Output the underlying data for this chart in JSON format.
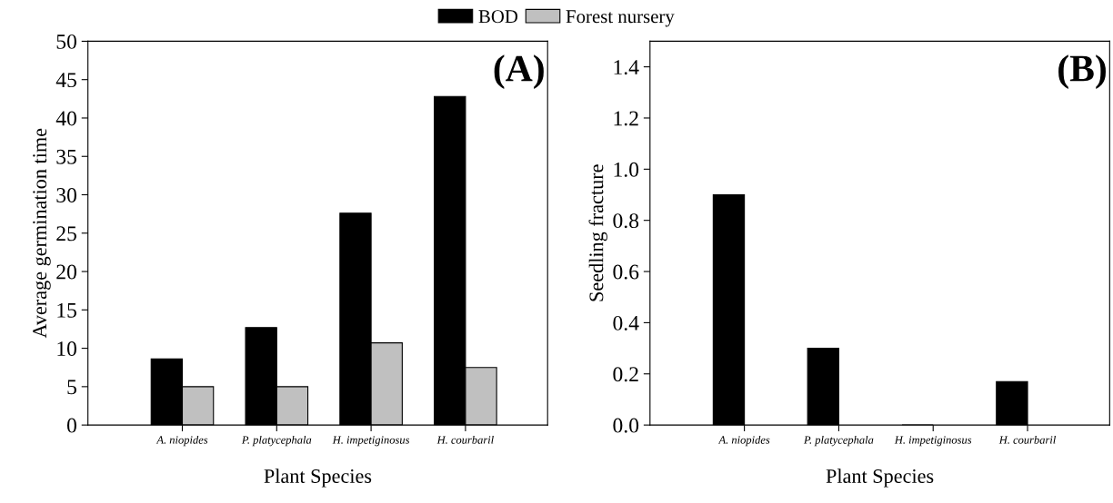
{
  "chart_data": [
    {
      "type": "bar",
      "xlabel": "Plant Species",
      "ylabel": "Average germination time",
      "categories": [
        "A. niopides",
        "P. platycephala",
        "H. impetiginosus",
        "H. courbaril"
      ],
      "series": [
        {
          "name": "BOD",
          "color": "#000000",
          "values": [
            8.6,
            12.7,
            27.6,
            42.8
          ]
        },
        {
          "name": "Forest nursery",
          "color": "#c0c0c0",
          "values": [
            5.0,
            5.0,
            10.7,
            7.5
          ]
        }
      ],
      "ylim": [
        0,
        50
      ],
      "yticks": [
        0,
        5,
        10,
        15,
        20,
        25,
        30,
        35,
        40,
        45,
        50
      ],
      "annotations": [
        "(A)"
      ],
      "legend": "top",
      "grid": false
    },
    {
      "type": "bar",
      "xlabel": "Plant Species",
      "ylabel": "Seedling fracture",
      "categories": [
        "A. niopides",
        "P. platycephala",
        "H. impetiginosus",
        "H. courbaril"
      ],
      "series": [
        {
          "color": "#000000",
          "values": [
            0.9,
            0.3,
            0,
            0.17
          ]
        },
        {
          "color": "#c0c0c0",
          "values": [
            null,
            null,
            null,
            null
          ]
        }
      ],
      "ylim": [
        0,
        1.5
      ],
      "yticks": [
        {
          "value": 0,
          "label": "0.0"
        },
        {
          "value": 0.2,
          "label": "0.2"
        },
        {
          "value": 0.4,
          "label": "0.4"
        },
        {
          "value": 0.6,
          "label": "0.6"
        },
        {
          "value": 0.8,
          "label": "0.8"
        },
        {
          "value": 1.0,
          "label": "1.0"
        },
        {
          "value": 1.2,
          "label": "1.2"
        },
        {
          "value": 1.4,
          "label": "1.4"
        }
      ],
      "annotations": [
        "(B)"
      ],
      "grid": false
    }
  ]
}
